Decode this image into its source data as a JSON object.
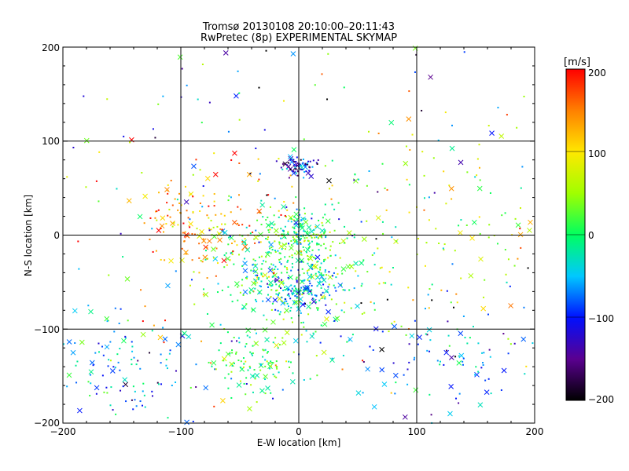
{
  "chart_data": {
    "type": "scatter",
    "title": "Tromsø 20130108 20:10:00–20:11:43",
    "subtitle": "RwPretec (8p) EXPERIMENTAL SKYMAP",
    "xlabel": "E-W location [km]",
    "ylabel": "N-S location [km]",
    "xlim": [
      -200,
      200
    ],
    "ylim": [
      -200,
      200
    ],
    "xticks": [
      "−200",
      "−100",
      "0",
      "100",
      "200"
    ],
    "yticks": [
      "−200",
      "−100",
      "0",
      "100",
      "200"
    ],
    "grid": true,
    "markers": "small dots and crosses, colored by velocity",
    "colorbar": {
      "label": "[m/s]",
      "range": [
        -200,
        200
      ],
      "ticks": [
        "200",
        "100",
        "0",
        "−100",
        "−200"
      ],
      "colormap": [
        "#000000",
        "#5a0090",
        "#0010ff",
        "#00c8ff",
        "#00ff60",
        "#a0ff00",
        "#ffe800",
        "#ff8000",
        "#ff0000"
      ]
    },
    "clusters": [
      {
        "center_x": 0,
        "center_y": 73,
        "spread": 7,
        "velocity": -120,
        "points": 70
      },
      {
        "center_x": 0,
        "center_y": 0,
        "spread": 15,
        "velocity": 0,
        "points": 140
      },
      {
        "center_x": -10,
        "center_y": -40,
        "spread": 35,
        "velocity": 5,
        "points": 380
      },
      {
        "center_x": 0,
        "center_y": -55,
        "spread": 15,
        "velocity": -50,
        "points": 120
      },
      {
        "center_x": -40,
        "center_y": -135,
        "spread": 20,
        "velocity": 10,
        "points": 120
      },
      {
        "center_x": -80,
        "center_y": 20,
        "spread": 30,
        "velocity": 140,
        "points": 140
      },
      {
        "center_x": 120,
        "center_y": 10,
        "spread": 50,
        "velocity": 60,
        "points": 100
      },
      {
        "center_x": -150,
        "center_y": -140,
        "spread": 35,
        "velocity": -60,
        "points": 120
      },
      {
        "center_x": 130,
        "center_y": -140,
        "spread": 45,
        "velocity": -60,
        "points": 120
      },
      {
        "center_x": 0,
        "center_y": 0,
        "spread": 140,
        "velocity": 0,
        "points": 300
      }
    ]
  }
}
